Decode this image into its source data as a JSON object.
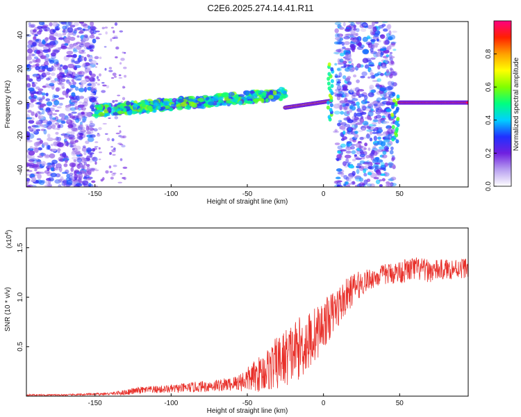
{
  "title": "C2E6.2025.274.14.41.R11",
  "chart_data": [
    {
      "type": "heatmap",
      "xlabel": "Height of straight line (km)",
      "ylabel": "Frequency (Hz)",
      "xlim": [
        -195,
        95
      ],
      "ylim": [
        -50,
        48
      ],
      "x_ticks": [
        -150,
        -100,
        -50,
        0,
        50
      ],
      "y_ticks": [
        -40,
        -20,
        0,
        20,
        40
      ],
      "colorbar": {
        "label": "Normalized spectral amplitude",
        "range": [
          0,
          1
        ],
        "ticks": [
          "0.0",
          "0.2",
          "0.4",
          "0.6",
          "0.8"
        ],
        "tick_values": [
          0.0,
          0.2,
          0.4,
          0.6,
          0.8
        ],
        "colors": [
          "#ffffff",
          "#b8a0f0",
          "#7020e0",
          "#2030ff",
          "#00d0ff",
          "#00ff80",
          "#80ff00",
          "#ffff00",
          "#ffa000",
          "#ff2000",
          "#ff0080"
        ]
      },
      "regions": [
        {
          "kind": "noise",
          "x": [
            -195,
            -150
          ],
          "y": [
            -50,
            48
          ],
          "level": 0.35
        },
        {
          "kind": "sparse",
          "x": [
            -150,
            -130
          ],
          "y": [
            -50,
            48
          ],
          "level": 0.12
        },
        {
          "kind": "ridge",
          "x": [
            -150,
            -25
          ],
          "y_center": [
            -5,
            5
          ],
          "width": 6,
          "level": 0.45
        },
        {
          "kind": "line",
          "x": [
            -25,
            5
          ],
          "y_center": [
            -3,
            1
          ],
          "width": 3,
          "level": 0.9
        },
        {
          "kind": "spike",
          "x": [
            3,
            6
          ],
          "y": [
            -10,
            24
          ],
          "level": 0.6
        },
        {
          "kind": "noise",
          "x": [
            8,
            47
          ],
          "y": [
            -50,
            48
          ],
          "level": 0.4
        },
        {
          "kind": "spike",
          "x": [
            45,
            49
          ],
          "y": [
            -23,
            6
          ],
          "level": 0.6
        },
        {
          "kind": "line",
          "x": [
            50,
            95
          ],
          "y_center": [
            0,
            0
          ],
          "width": 3,
          "level": 1.0
        }
      ]
    },
    {
      "type": "line",
      "xlabel": "Height of straight line (km)",
      "ylabel": "SNR (10 * v/v)",
      "y_multiplier": "(x10",
      "y_multiplier_exp": "4",
      "y_multiplier_close": ")",
      "xlim": [
        -195,
        95
      ],
      "ylim": [
        0,
        1.7
      ],
      "x_ticks": [
        -150,
        -100,
        -50,
        0,
        50
      ],
      "y_ticks": [
        0.5,
        1.0,
        1.5
      ],
      "y_tick_labels": [
        "0.5",
        "1.0",
        "1.5"
      ],
      "color": "#e8302a",
      "envelope": {
        "x": [
          -195,
          -170,
          -140,
          -130,
          -120,
          -100,
          -80,
          -60,
          -50,
          -40,
          -30,
          -20,
          -10,
          0,
          10,
          20,
          30,
          40,
          50,
          60,
          70,
          80,
          95
        ],
        "base": [
          0.01,
          0.01,
          0.02,
          0.03,
          0.05,
          0.06,
          0.08,
          0.1,
          0.13,
          0.18,
          0.25,
          0.35,
          0.45,
          0.65,
          0.85,
          1.05,
          1.15,
          1.2,
          1.22,
          1.25,
          1.23,
          1.25,
          1.27
        ],
        "amp": [
          0.01,
          0.01,
          0.02,
          0.04,
          0.05,
          0.06,
          0.08,
          0.1,
          0.18,
          0.28,
          0.4,
          0.45,
          0.45,
          0.35,
          0.3,
          0.22,
          0.15,
          0.15,
          0.17,
          0.18,
          0.16,
          0.15,
          0.15
        ]
      }
    }
  ]
}
